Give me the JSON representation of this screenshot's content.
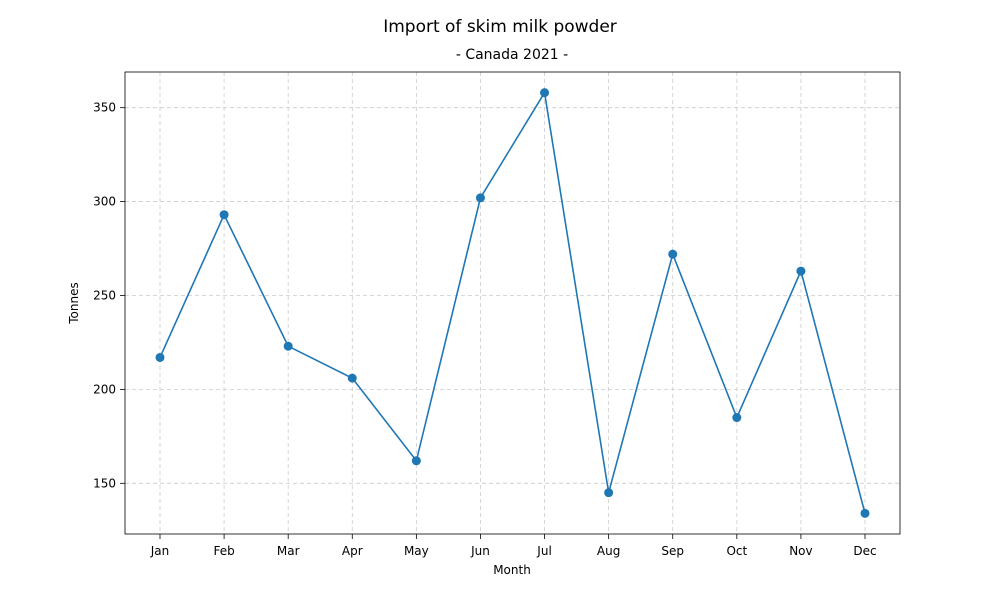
{
  "chart_data": {
    "type": "line",
    "title": "Import of skim milk powder",
    "subtitle": "- Canada 2021 -",
    "xlabel": "Month",
    "ylabel": "Tonnes",
    "categories": [
      "Jan",
      "Feb",
      "Mar",
      "Apr",
      "May",
      "Jun",
      "Jul",
      "Aug",
      "Sep",
      "Oct",
      "Nov",
      "Dec"
    ],
    "series": [
      {
        "values": [
          217,
          293,
          223,
          206,
          162,
          302,
          358,
          145,
          272,
          185,
          263,
          134
        ],
        "color": "#1f77b4"
      }
    ],
    "ylim": [
      123,
      369
    ],
    "yticks": [
      150,
      200,
      250,
      300,
      350
    ],
    "grid": true,
    "markers": true
  }
}
